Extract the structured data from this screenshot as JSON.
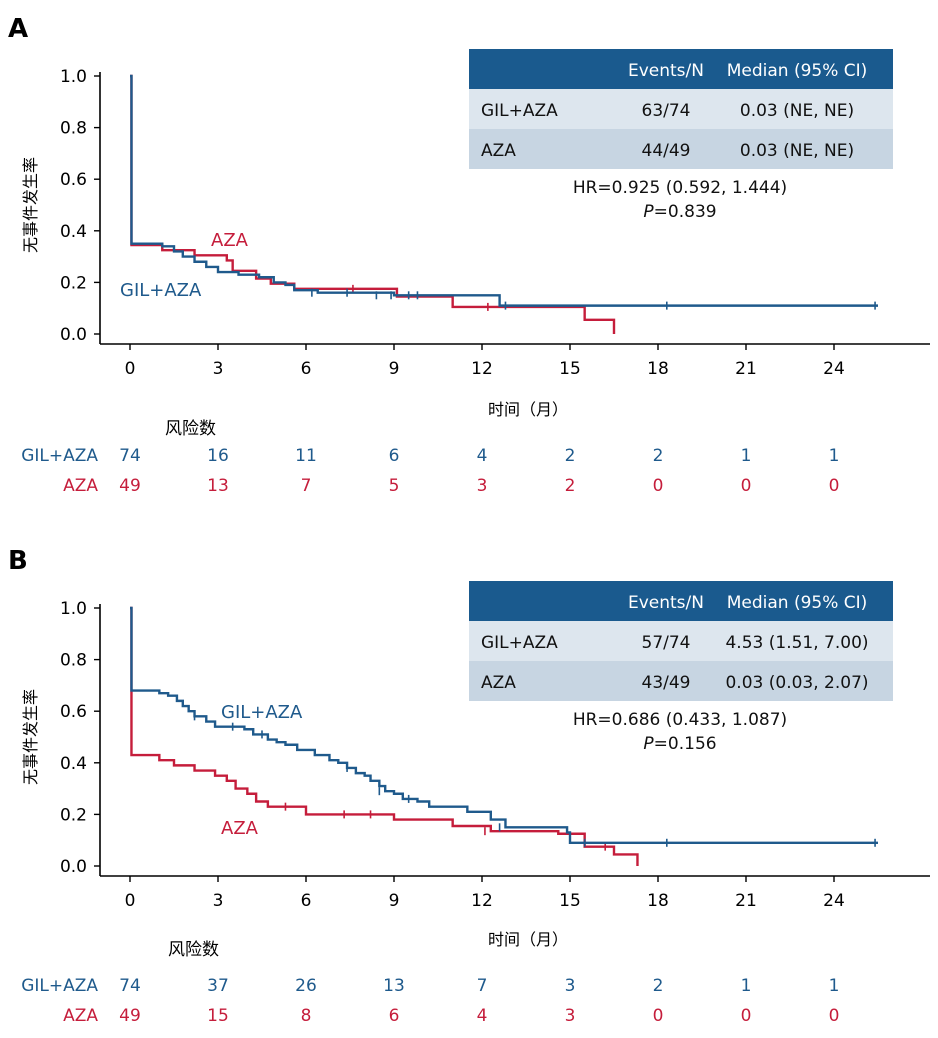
{
  "colors": {
    "gil": "#1f5a8c",
    "aza": "#c51d3b",
    "header": "#1a5a8e",
    "row1": "#dde6ee",
    "row2": "#c7d5e2",
    "axis": "#000000"
  },
  "chart_data": [
    {
      "type": "line",
      "panel_label": "A",
      "ylabel": "无事件发生率",
      "xlabel": "时间（月）",
      "xlim": [
        -1.5,
        27.5
      ],
      "ylim": [
        0,
        1
      ],
      "x_ticks": [
        "0",
        "3",
        "6",
        "9",
        "12",
        "15",
        "18",
        "21",
        "24"
      ],
      "y_ticks": [
        "0.0",
        "0.2",
        "0.4",
        "0.6",
        "0.8",
        "1.0"
      ],
      "series": [
        {
          "name": "GIL+AZA",
          "label": "GIL+AZA",
          "steps": [
            [
              0,
              1.0
            ],
            [
              0.05,
              0.35
            ],
            [
              1.1,
              0.34
            ],
            [
              1.5,
              0.32
            ],
            [
              1.8,
              0.3
            ],
            [
              2.2,
              0.28
            ],
            [
              2.6,
              0.26
            ],
            [
              3.0,
              0.24
            ],
            [
              3.7,
              0.23
            ],
            [
              4.4,
              0.22
            ],
            [
              4.9,
              0.2
            ],
            [
              5.3,
              0.19
            ],
            [
              5.6,
              0.17
            ],
            [
              6.4,
              0.16
            ],
            [
              9.0,
              0.15
            ],
            [
              12.6,
              0.11
            ],
            [
              25.5,
              0.11
            ]
          ],
          "censors": [
            [
              6.2,
              0.16
            ],
            [
              7.4,
              0.16
            ],
            [
              8.4,
              0.15
            ],
            [
              8.9,
              0.15
            ],
            [
              9.5,
              0.15
            ],
            [
              9.8,
              0.15
            ],
            [
              12.8,
              0.11
            ],
            [
              18.3,
              0.11
            ],
            [
              25.4,
              0.11
            ]
          ]
        },
        {
          "name": "AZA",
          "label": "AZA",
          "steps": [
            [
              0,
              1.0
            ],
            [
              0.05,
              0.345
            ],
            [
              1.1,
              0.325
            ],
            [
              2.2,
              0.305
            ],
            [
              3.3,
              0.285
            ],
            [
              3.5,
              0.245
            ],
            [
              4.3,
              0.215
            ],
            [
              4.8,
              0.195
            ],
            [
              5.6,
              0.175
            ],
            [
              9.1,
              0.145
            ],
            [
              11.0,
              0.105
            ],
            [
              15.5,
              0.055
            ],
            [
              16.5,
              0.0
            ]
          ],
          "censors": [
            [
              7.6,
              0.175
            ],
            [
              12.2,
              0.105
            ]
          ]
        }
      ],
      "table": {
        "headers": [
          "",
          "Events/N",
          "Median (95% CI)"
        ],
        "rows": [
          [
            "GIL+AZA",
            "63/74",
            "0.03 (NE, NE)"
          ],
          [
            "AZA",
            "44/49",
            "0.03 (NE, NE)"
          ]
        ]
      },
      "hr_text": "HR=0.925 (0.592, 1.444)",
      "p_label": "P",
      "p_text": "=0.839",
      "risk_title": "风险数",
      "risk_rows": [
        {
          "name": "GIL+AZA",
          "values": [
            "74",
            "16",
            "11",
            "6",
            "4",
            "2",
            "2",
            "1",
            "1"
          ]
        },
        {
          "name": "AZA",
          "values": [
            "49",
            "13",
            "7",
            "5",
            "3",
            "2",
            "0",
            "0",
            "0"
          ]
        }
      ]
    },
    {
      "type": "line",
      "panel_label": "B",
      "ylabel": "无事件发生率",
      "xlabel": "时间（月）",
      "xlim": [
        -1.5,
        27.5
      ],
      "ylim": [
        0,
        1
      ],
      "x_ticks": [
        "0",
        "3",
        "6",
        "9",
        "12",
        "15",
        "18",
        "21",
        "24"
      ],
      "y_ticks": [
        "0.0",
        "0.2",
        "0.4",
        "0.6",
        "0.8",
        "1.0"
      ],
      "series": [
        {
          "name": "GIL+AZA",
          "label": "GIL+AZA",
          "steps": [
            [
              0,
              1.0
            ],
            [
              0.05,
              0.68
            ],
            [
              1.0,
              0.67
            ],
            [
              1.3,
              0.66
            ],
            [
              1.6,
              0.64
            ],
            [
              1.8,
              0.62
            ],
            [
              2.0,
              0.6
            ],
            [
              2.2,
              0.58
            ],
            [
              2.6,
              0.56
            ],
            [
              2.9,
              0.54
            ],
            [
              3.9,
              0.53
            ],
            [
              4.2,
              0.51
            ],
            [
              4.7,
              0.49
            ],
            [
              5.0,
              0.48
            ],
            [
              5.3,
              0.47
            ],
            [
              5.7,
              0.45
            ],
            [
              6.3,
              0.43
            ],
            [
              6.8,
              0.41
            ],
            [
              7.1,
              0.4
            ],
            [
              7.4,
              0.38
            ],
            [
              7.7,
              0.36
            ],
            [
              8.0,
              0.35
            ],
            [
              8.2,
              0.33
            ],
            [
              8.5,
              0.31
            ],
            [
              8.7,
              0.29
            ],
            [
              9.0,
              0.28
            ],
            [
              9.3,
              0.26
            ],
            [
              9.8,
              0.25
            ],
            [
              10.2,
              0.23
            ],
            [
              11.5,
              0.21
            ],
            [
              12.3,
              0.18
            ],
            [
              12.8,
              0.15
            ],
            [
              14.9,
              0.13
            ],
            [
              15.0,
              0.09
            ],
            [
              25.5,
              0.09
            ]
          ],
          "censors": [
            [
              2.2,
              0.58
            ],
            [
              3.5,
              0.54
            ],
            [
              4.5,
              0.51
            ],
            [
              7.4,
              0.38
            ],
            [
              8.5,
              0.29
            ],
            [
              9.5,
              0.26
            ],
            [
              12.6,
              0.15
            ],
            [
              15.5,
              0.09
            ],
            [
              18.3,
              0.09
            ],
            [
              25.4,
              0.09
            ]
          ]
        },
        {
          "name": "AZA",
          "label": "AZA",
          "steps": [
            [
              0,
              1.0
            ],
            [
              0.05,
              0.43
            ],
            [
              1.0,
              0.41
            ],
            [
              1.5,
              0.39
            ],
            [
              2.2,
              0.37
            ],
            [
              2.9,
              0.35
            ],
            [
              3.3,
              0.33
            ],
            [
              3.6,
              0.3
            ],
            [
              4.0,
              0.28
            ],
            [
              4.3,
              0.25
            ],
            [
              4.7,
              0.23
            ],
            [
              6.0,
              0.2
            ],
            [
              9.0,
              0.18
            ],
            [
              11.0,
              0.155
            ],
            [
              12.3,
              0.135
            ],
            [
              14.6,
              0.125
            ],
            [
              15.5,
              0.075
            ],
            [
              16.5,
              0.045
            ],
            [
              17.3,
              0.0
            ]
          ],
          "censors": [
            [
              5.3,
              0.23
            ],
            [
              7.3,
              0.2
            ],
            [
              8.2,
              0.2
            ],
            [
              12.1,
              0.135
            ],
            [
              16.2,
              0.075
            ]
          ]
        }
      ],
      "table": {
        "headers": [
          "",
          "Events/N",
          "Median (95% CI)"
        ],
        "rows": [
          [
            "GIL+AZA",
            "57/74",
            "4.53 (1.51, 7.00)"
          ],
          [
            "AZA",
            "43/49",
            "0.03 (0.03, 2.07)"
          ]
        ]
      },
      "hr_text": "HR=0.686 (0.433, 1.087)",
      "p_label": "P",
      "p_text": "=0.156",
      "risk_title": "风险数",
      "risk_rows": [
        {
          "name": "GIL+AZA",
          "values": [
            "74",
            "37",
            "26",
            "13",
            "7",
            "3",
            "2",
            "1",
            "1"
          ]
        },
        {
          "name": "AZA",
          "values": [
            "49",
            "15",
            "8",
            "6",
            "4",
            "3",
            "0",
            "0",
            "0"
          ]
        }
      ]
    }
  ]
}
